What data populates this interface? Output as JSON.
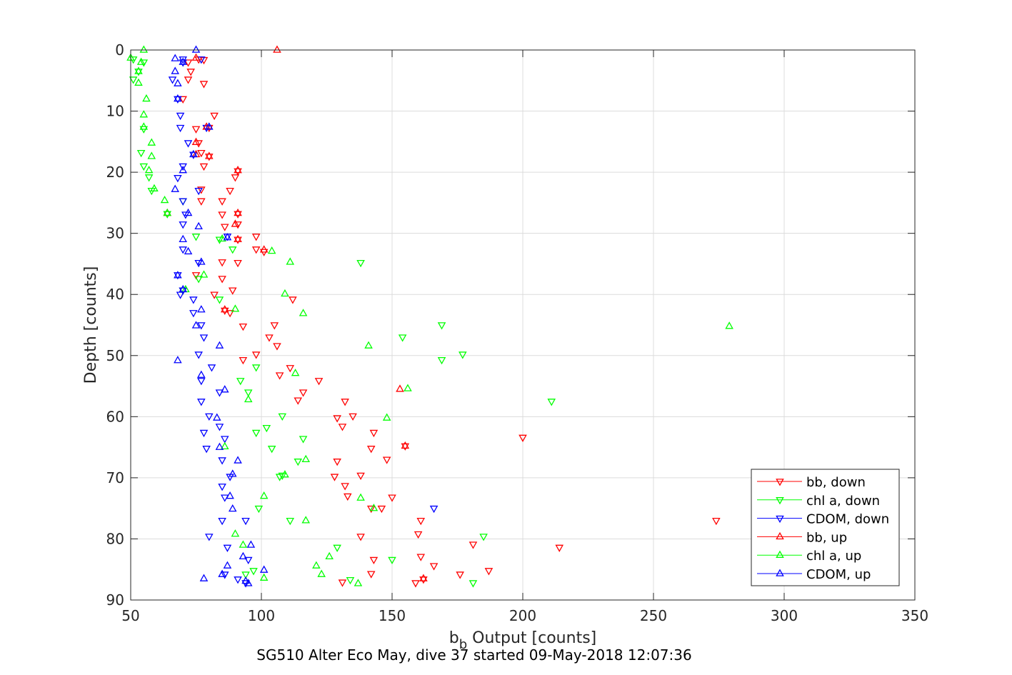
{
  "chart_data": {
    "type": "scatter",
    "xlabel": "b",
    "xlabel_sub": "b",
    "xlabel_rest": " Output [counts]",
    "ylabel": "Depth [counts]",
    "caption": "SG510 Alter Eco May, dive 37 started 09-May-2018 12:07:36",
    "xlim": [
      50,
      350
    ],
    "ylim": [
      0,
      90
    ],
    "y_reversed": true,
    "xticks": [
      50,
      100,
      150,
      200,
      250,
      300,
      350
    ],
    "yticks": [
      0,
      10,
      20,
      30,
      40,
      50,
      60,
      70,
      80,
      90
    ],
    "grid": true,
    "legend_position": "bottom-right",
    "series": [
      {
        "name": "bb, down",
        "color": "#ff0000",
        "marker": "triangle-down",
        "points": [
          [
            76,
            1.5
          ],
          [
            78,
            1.6
          ],
          [
            72,
            2
          ],
          [
            73,
            3.5
          ],
          [
            72,
            4.8
          ],
          [
            78,
            5.5
          ],
          [
            70,
            8
          ],
          [
            82,
            10.7
          ],
          [
            75,
            12.9
          ],
          [
            80,
            12.7
          ],
          [
            76,
            15.2
          ],
          [
            77,
            16.8
          ],
          [
            80,
            17.4
          ],
          [
            78,
            19
          ],
          [
            91,
            19.8
          ],
          [
            90,
            20.8
          ],
          [
            88,
            23
          ],
          [
            77,
            22.8
          ],
          [
            77,
            24.7
          ],
          [
            85,
            24.7
          ],
          [
            85,
            26.9
          ],
          [
            91,
            26.8
          ],
          [
            86,
            28.9
          ],
          [
            91,
            28.5
          ],
          [
            98,
            30.5
          ],
          [
            98,
            32.6
          ],
          [
            91,
            31
          ],
          [
            101,
            33
          ],
          [
            91,
            34.8
          ],
          [
            85,
            34.7
          ],
          [
            85,
            37.4
          ],
          [
            75,
            36.8
          ],
          [
            89,
            39.3
          ],
          [
            82,
            40
          ],
          [
            112,
            40.8
          ],
          [
            86,
            42.6
          ],
          [
            88,
            43
          ],
          [
            105,
            45
          ],
          [
            93,
            45.2
          ],
          [
            103,
            47
          ],
          [
            106,
            48.4
          ],
          [
            98,
            49.8
          ],
          [
            93,
            50.7
          ],
          [
            111,
            52
          ],
          [
            107,
            53.2
          ],
          [
            122,
            54.1
          ],
          [
            116,
            56
          ],
          [
            114,
            57.3
          ],
          [
            132,
            57.5
          ],
          [
            135,
            59.9
          ],
          [
            129,
            60.2
          ],
          [
            131,
            61.6
          ],
          [
            143,
            62.6
          ],
          [
            200,
            63.4
          ],
          [
            142,
            65.2
          ],
          [
            155,
            64.8
          ],
          [
            148,
            67
          ],
          [
            129,
            67.3
          ],
          [
            138,
            69.6
          ],
          [
            128,
            69.8
          ],
          [
            132,
            71.3
          ],
          [
            150,
            73.2
          ],
          [
            133,
            73
          ],
          [
            142,
            75
          ],
          [
            146,
            75
          ],
          [
            161,
            77
          ],
          [
            274,
            77
          ],
          [
            138,
            79.6
          ],
          [
            160,
            79.2
          ],
          [
            181,
            80.9
          ],
          [
            214,
            81.4
          ],
          [
            161,
            82.9
          ],
          [
            143,
            83.4
          ],
          [
            166,
            84.4
          ],
          [
            187,
            85.2
          ],
          [
            176,
            85.8
          ],
          [
            142,
            85.7
          ],
          [
            131,
            87.1
          ],
          [
            162,
            86.6
          ],
          [
            159,
            87.2
          ]
        ]
      },
      {
        "name": "chl a, down",
        "color": "#00ff00",
        "marker": "triangle-down",
        "points": [
          [
            51,
            1.5
          ],
          [
            55,
            2
          ],
          [
            53,
            3.5
          ],
          [
            51,
            4.8
          ],
          [
            55,
            12.9
          ],
          [
            54,
            16.8
          ],
          [
            55,
            19
          ],
          [
            57,
            20.8
          ],
          [
            58,
            23
          ],
          [
            70,
            24.7
          ],
          [
            64,
            26.8
          ],
          [
            75,
            30.5
          ],
          [
            84,
            31
          ],
          [
            89,
            32.6
          ],
          [
            138,
            34.8
          ],
          [
            76,
            37.4
          ],
          [
            70,
            39.3
          ],
          [
            84,
            40.8
          ],
          [
            169,
            45
          ],
          [
            154,
            47
          ],
          [
            177,
            49.8
          ],
          [
            169,
            50.7
          ],
          [
            98,
            51.9
          ],
          [
            92,
            54.1
          ],
          [
            95,
            56
          ],
          [
            211,
            57.5
          ],
          [
            108,
            59.9
          ],
          [
            98,
            62.6
          ],
          [
            116,
            63.6
          ],
          [
            102,
            61.8
          ],
          [
            104,
            65.2
          ],
          [
            114,
            67.3
          ],
          [
            108,
            69.6
          ],
          [
            107,
            69.8
          ],
          [
            99,
            75
          ],
          [
            111,
            77
          ],
          [
            185,
            79.6
          ],
          [
            129,
            81.4
          ],
          [
            150,
            83.4
          ],
          [
            97,
            85.2
          ],
          [
            94,
            85.8
          ],
          [
            134,
            86.7
          ],
          [
            181,
            87.2
          ]
        ]
      },
      {
        "name": "CDOM, down",
        "color": "#0000ff",
        "marker": "triangle-down",
        "points": [
          [
            70,
            1.5
          ],
          [
            77,
            1.5
          ],
          [
            70,
            2
          ],
          [
            66,
            4.8
          ],
          [
            68,
            8
          ],
          [
            69,
            10.7
          ],
          [
            69,
            12.7
          ],
          [
            79,
            12.7
          ],
          [
            72,
            15.2
          ],
          [
            74,
            17.1
          ],
          [
            70,
            19
          ],
          [
            68,
            20.9
          ],
          [
            76,
            23
          ],
          [
            70,
            24.7
          ],
          [
            71,
            26.9
          ],
          [
            70,
            28.5
          ],
          [
            87,
            30.5
          ],
          [
            70,
            32.6
          ],
          [
            76,
            34.8
          ],
          [
            68,
            36.8
          ],
          [
            70,
            39.3
          ],
          [
            69,
            40
          ],
          [
            74,
            40.8
          ],
          [
            74,
            43
          ],
          [
            77,
            45
          ],
          [
            78,
            47
          ],
          [
            76,
            49.8
          ],
          [
            81,
            51.9
          ],
          [
            77,
            54.1
          ],
          [
            84,
            56
          ],
          [
            77,
            57.5
          ],
          [
            80,
            59.9
          ],
          [
            84,
            61.6
          ],
          [
            78,
            62.6
          ],
          [
            86,
            63.6
          ],
          [
            79,
            65.2
          ],
          [
            85,
            67.1
          ],
          [
            88,
            69.8
          ],
          [
            85,
            71.4
          ],
          [
            86,
            73.2
          ],
          [
            85,
            77
          ],
          [
            94,
            77
          ],
          [
            80,
            79.6
          ],
          [
            87,
            81.4
          ],
          [
            95,
            83.4
          ],
          [
            91,
            86.6
          ],
          [
            94,
            87.2
          ],
          [
            86,
            85.8
          ],
          [
            166,
            75
          ]
        ]
      },
      {
        "name": "bb, up",
        "color": "#ff0000",
        "marker": "triangle-up",
        "points": [
          [
            106,
            0
          ],
          [
            75,
            1.3
          ],
          [
            79,
            12.6
          ],
          [
            75,
            15.1
          ],
          [
            75,
            17.1
          ],
          [
            80,
            17.4
          ],
          [
            91,
            19.7
          ],
          [
            64,
            26.7
          ],
          [
            91,
            26.7
          ],
          [
            90,
            28.5
          ],
          [
            91,
            31
          ],
          [
            101,
            32.7
          ],
          [
            86,
            42.5
          ],
          [
            153,
            55.5
          ],
          [
            155,
            64.8
          ],
          [
            162,
            86.5
          ]
        ]
      },
      {
        "name": "chl a, up",
        "color": "#00ff00",
        "marker": "triangle-up",
        "points": [
          [
            55,
            0
          ],
          [
            50,
            1.3
          ],
          [
            54,
            2
          ],
          [
            53,
            3.5
          ],
          [
            53,
            5.4
          ],
          [
            56,
            8
          ],
          [
            55,
            10.6
          ],
          [
            55,
            12.6
          ],
          [
            58,
            15.2
          ],
          [
            58,
            17.4
          ],
          [
            57,
            19.7
          ],
          [
            59,
            22.7
          ],
          [
            63,
            24.6
          ],
          [
            64,
            26.7
          ],
          [
            85,
            30.9
          ],
          [
            104,
            32.9
          ],
          [
            111,
            34.7
          ],
          [
            78,
            36.8
          ],
          [
            71,
            39.2
          ],
          [
            109,
            39.9
          ],
          [
            116,
            43.1
          ],
          [
            90,
            42.4
          ],
          [
            279,
            45.2
          ],
          [
            141,
            48.4
          ],
          [
            113,
            52.9
          ],
          [
            156,
            55.4
          ],
          [
            95,
            57.2
          ],
          [
            148,
            60.2
          ],
          [
            86,
            64.9
          ],
          [
            117,
            67
          ],
          [
            109,
            69.5
          ],
          [
            101,
            73
          ],
          [
            117,
            77
          ],
          [
            143,
            75
          ],
          [
            138,
            73.3
          ],
          [
            90,
            79.2
          ],
          [
            93,
            81
          ],
          [
            126,
            82.9
          ],
          [
            121,
            84.4
          ],
          [
            123,
            85.8
          ],
          [
            101,
            86.4
          ],
          [
            137,
            87.3
          ]
        ]
      },
      {
        "name": "CDOM, up",
        "color": "#0000ff",
        "marker": "triangle-up",
        "points": [
          [
            75,
            0
          ],
          [
            67,
            1.4
          ],
          [
            70,
            2
          ],
          [
            67,
            3.5
          ],
          [
            68,
            5.5
          ],
          [
            68,
            8
          ],
          [
            80,
            12.6
          ],
          [
            74,
            17.1
          ],
          [
            70,
            19.7
          ],
          [
            67,
            22.8
          ],
          [
            72,
            26.7
          ],
          [
            76,
            28.9
          ],
          [
            87,
            30.7
          ],
          [
            70,
            31
          ],
          [
            72,
            33
          ],
          [
            77,
            34.7
          ],
          [
            68,
            36.9
          ],
          [
            70,
            39.2
          ],
          [
            77,
            42.5
          ],
          [
            75,
            45.1
          ],
          [
            84,
            48.4
          ],
          [
            68,
            50.8
          ],
          [
            77,
            53.2
          ],
          [
            86,
            55.6
          ],
          [
            83,
            60.2
          ],
          [
            84,
            65
          ],
          [
            91,
            67.2
          ],
          [
            89,
            69.4
          ],
          [
            88,
            73
          ],
          [
            89,
            75.1
          ],
          [
            96,
            81
          ],
          [
            93,
            82.9
          ],
          [
            87,
            84.4
          ],
          [
            101,
            85.1
          ],
          [
            85,
            85.8
          ],
          [
            94,
            86.9
          ],
          [
            95,
            87.3
          ],
          [
            78,
            86.5
          ]
        ]
      }
    ]
  }
}
